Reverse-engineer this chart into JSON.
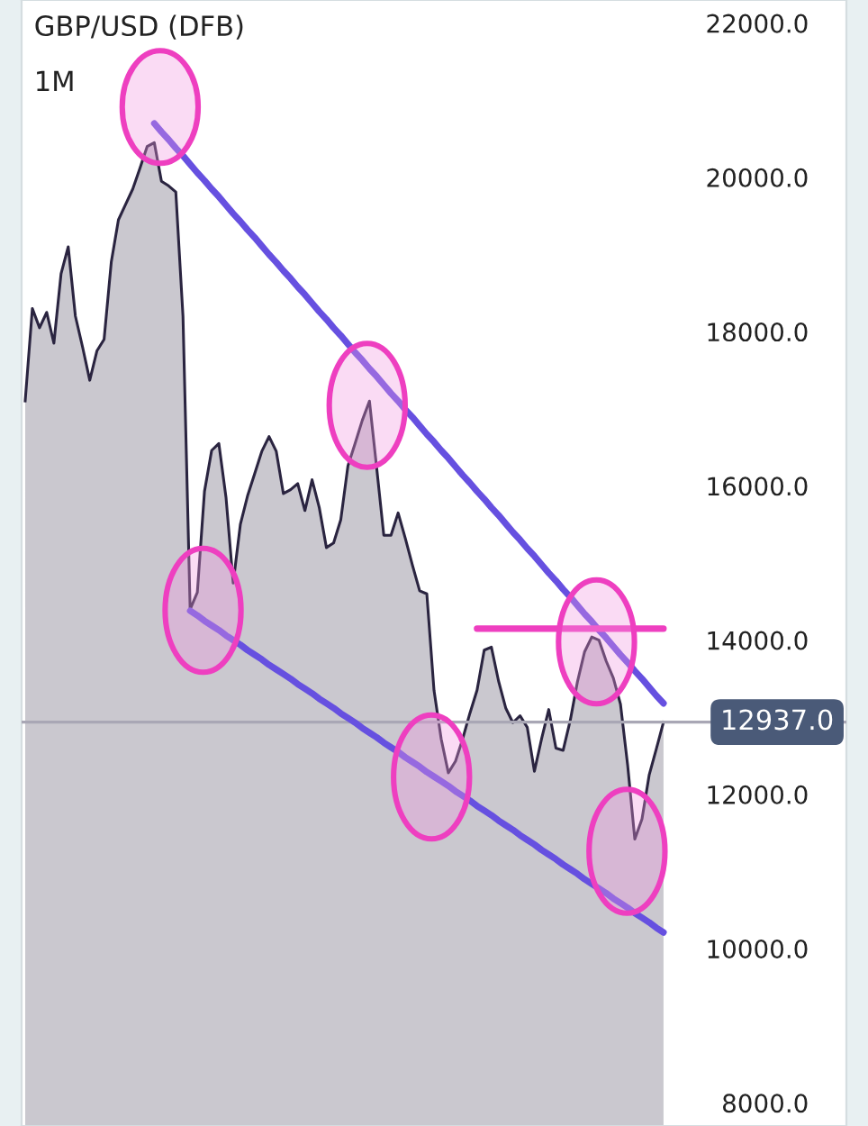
{
  "chart_data": {
    "type": "area",
    "title": "GBP/USD (DFB)",
    "subtitle": "1M",
    "categories": [
      null,
      null,
      null,
      null,
      null,
      null,
      null,
      null,
      null,
      null,
      null,
      null,
      null,
      null,
      null,
      null,
      null,
      null,
      null,
      null,
      null,
      null,
      null,
      null,
      null,
      null,
      null,
      null,
      null,
      null,
      null,
      null,
      null,
      null,
      null,
      null,
      null,
      null,
      null,
      null,
      null,
      null,
      null,
      null,
      null,
      null,
      null,
      null,
      null,
      null,
      null,
      null,
      null,
      null,
      null,
      null,
      null,
      null,
      null,
      null,
      null,
      null,
      null,
      null,
      null,
      null,
      null,
      null,
      null,
      null,
      null,
      null,
      null,
      null,
      null,
      null,
      null,
      null,
      null,
      null,
      null,
      null,
      null,
      null,
      null,
      null,
      null,
      null,
      null,
      null
    ],
    "series": [
      {
        "color": "#2a2440",
        "values": [
          17100,
          18300,
          18050,
          18250,
          17850,
          18750,
          19100,
          18200,
          17800,
          17370,
          17750,
          17900,
          18900,
          19450,
          19650,
          19850,
          20120,
          20400,
          20450,
          19950,
          19890,
          19810,
          18200,
          14400,
          14620,
          15930,
          16460,
          16550,
          15850,
          14740,
          15500,
          15870,
          16160,
          16450,
          16640,
          16450,
          15900,
          15950,
          16030,
          15680,
          16080,
          15720,
          15200,
          15260,
          15560,
          16260,
          16550,
          16850,
          17100,
          16240,
          15360,
          15360,
          15650,
          15320,
          14970,
          14640,
          14600,
          13350,
          12720,
          12280,
          12430,
          12720,
          13050,
          13350,
          13870,
          13910,
          13470,
          13120,
          12930,
          13020,
          12870,
          12300,
          12720,
          13100,
          12600,
          12570,
          12960,
          13460,
          13850,
          14040,
          14000,
          13730,
          13510,
          13170,
          12380,
          11420,
          11680,
          12250,
          12590,
          12937
        ]
      },
      {
        "type": "line",
        "color": "#6650e0",
        "values": [
          null,
          null,
          null,
          null,
          null,
          null,
          null,
          null,
          null,
          null,
          null,
          null,
          null,
          null,
          null,
          null,
          null,
          null,
          20700,
          20590,
          20490,
          20380,
          20280,
          20170,
          20060,
          19960,
          19850,
          19750,
          19640,
          19530,
          19430,
          19320,
          19220,
          19110,
          19000,
          18900,
          18790,
          18690,
          18580,
          18480,
          18370,
          18260,
          18160,
          18050,
          17950,
          17840,
          17730,
          17630,
          17520,
          17420,
          17310,
          17200,
          17100,
          16990,
          16890,
          16780,
          16670,
          16570,
          16460,
          16360,
          16250,
          16140,
          16040,
          15930,
          15830,
          15720,
          15620,
          15510,
          15400,
          15300,
          15190,
          15090,
          14980,
          14870,
          14770,
          14660,
          14560,
          14450,
          14340,
          14240,
          14130,
          14030,
          13920,
          13810,
          13710,
          13600,
          13500,
          13390,
          13280,
          13180
        ]
      },
      {
        "type": "line",
        "color": "#6650e0",
        "values": [
          null,
          null,
          null,
          null,
          null,
          null,
          null,
          null,
          null,
          null,
          null,
          null,
          null,
          null,
          null,
          null,
          null,
          null,
          null,
          null,
          null,
          null,
          null,
          14380,
          14320,
          14250,
          14190,
          14130,
          14060,
          14000,
          13940,
          13870,
          13810,
          13750,
          13680,
          13620,
          13560,
          13500,
          13430,
          13370,
          13310,
          13240,
          13180,
          13120,
          13050,
          12990,
          12930,
          12860,
          12800,
          12740,
          12670,
          12610,
          12550,
          12480,
          12420,
          12360,
          12290,
          12230,
          12170,
          12110,
          12040,
          11980,
          11920,
          11850,
          11790,
          11730,
          11660,
          11600,
          11540,
          11470,
          11410,
          11350,
          11280,
          11220,
          11160,
          11090,
          11030,
          10970,
          10900,
          10840,
          10780,
          10720,
          10650,
          10590,
          10530,
          10460,
          10400,
          10340,
          10270,
          10210
        ]
      },
      {
        "type": "line",
        "color": "#ee3fc0",
        "values": [
          null,
          null,
          null,
          null,
          null,
          null,
          null,
          null,
          null,
          null,
          null,
          null,
          null,
          null,
          null,
          null,
          null,
          null,
          null,
          null,
          null,
          null,
          null,
          null,
          null,
          null,
          null,
          null,
          null,
          null,
          null,
          null,
          null,
          null,
          null,
          null,
          null,
          null,
          null,
          null,
          null,
          null,
          null,
          null,
          null,
          null,
          null,
          null,
          null,
          null,
          null,
          null,
          null,
          null,
          null,
          null,
          null,
          null,
          null,
          null,
          null,
          null,
          null,
          14150,
          14150,
          14150,
          14150,
          14150,
          14150,
          14150,
          14150,
          14150,
          14150,
          14150,
          14150,
          14150,
          14150,
          14150,
          14150,
          14150,
          14150,
          14150,
          14150,
          14150,
          14150,
          14150,
          14150,
          14150,
          14150,
          14150
        ]
      }
    ],
    "ylim": [
      7700,
      22300
    ],
    "yticks": [
      {
        "value": 8000,
        "label": "8000.0"
      },
      {
        "value": 10000,
        "label": "10000.0"
      },
      {
        "value": 12000,
        "label": "12000.0"
      },
      {
        "value": 14000,
        "label": "14000.0"
      },
      {
        "value": 16000,
        "label": "16000.0"
      },
      {
        "value": 18000,
        "label": "18000.0"
      },
      {
        "value": 20000,
        "label": "20000.0"
      },
      {
        "value": 22000,
        "label": "22000.0"
      }
    ],
    "tick_labels": "y",
    "ref_lines": [
      {
        "axis": "y",
        "value": 12937,
        "label": "12937.0",
        "color": "#a9a7b5"
      }
    ],
    "grid": false,
    "legend": false
  }
}
